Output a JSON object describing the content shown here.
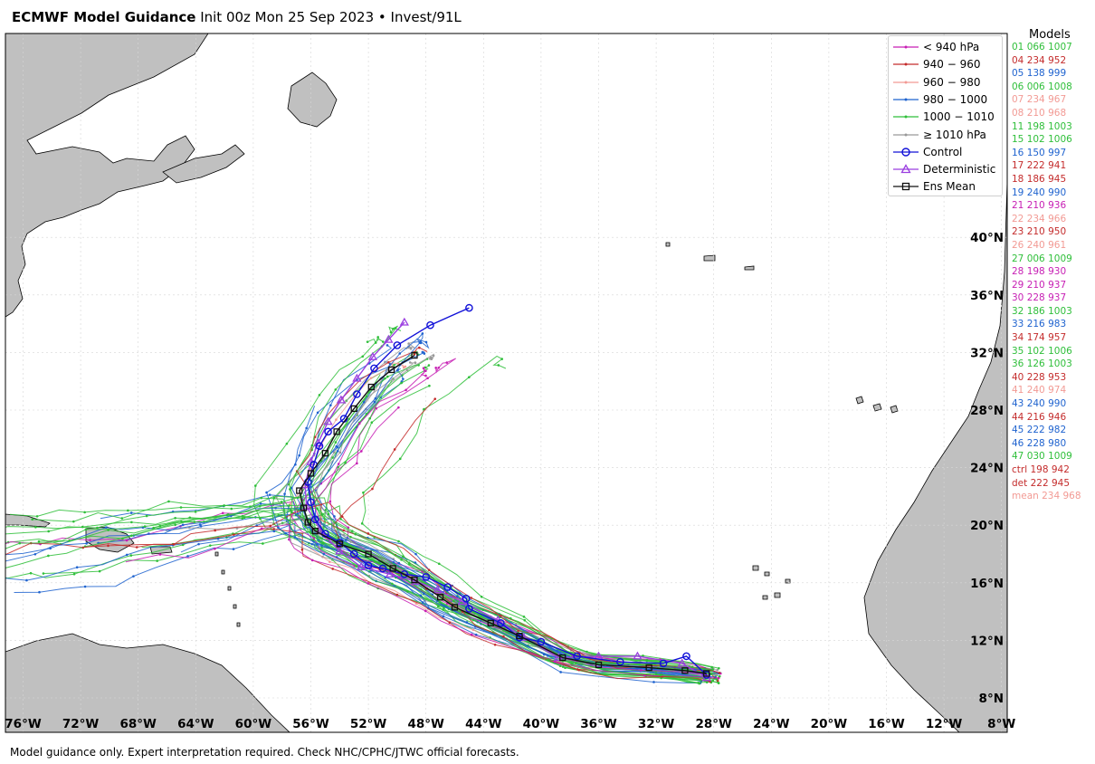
{
  "title": {
    "bold": "ECMWF Model Guidance",
    "rest": " Init 00z Mon 25 Sep 2023 • Invest/91L"
  },
  "axes": {
    "lon_labels": [
      "76°W",
      "72°W",
      "68°W",
      "64°W",
      "60°W",
      "56°W",
      "52°W",
      "48°W",
      "44°W",
      "40°W",
      "36°W",
      "32°W",
      "28°W",
      "24°W",
      "20°W",
      "16°W",
      "12°W",
      "8°W"
    ],
    "lon_values": [
      -76,
      -72,
      -68,
      -64,
      -60,
      -56,
      -52,
      -48,
      -44,
      -40,
      -36,
      -32,
      -28,
      -24,
      -20,
      -16,
      -12,
      -8
    ],
    "lat_labels": [
      "8°N",
      "12°N",
      "16°N",
      "20°N",
      "24°N",
      "28°N",
      "32°N",
      "36°N",
      "40°N"
    ],
    "lat_values": [
      8,
      12,
      16,
      20,
      24,
      28,
      32,
      36,
      40
    ],
    "extent": {
      "lon_min": -78,
      "lon_max": -8,
      "lat_min": 6.5,
      "lat_max": 55
    }
  },
  "legend": {
    "items": [
      {
        "label": "< 940 hPa",
        "color": "#c71fb4",
        "marker": "dot"
      },
      {
        "label": "940 − 960",
        "color": "#c42c2c",
        "marker": "dot"
      },
      {
        "label": "960 − 980",
        "color": "#f29a94",
        "marker": "dot"
      },
      {
        "label": "980 − 1000",
        "color": "#1f63cf",
        "marker": "dot"
      },
      {
        "label": "1000 − 1010",
        "color": "#2fbf3a",
        "marker": "dot"
      },
      {
        "label": "≥ 1010 hPa",
        "color": "#999999",
        "marker": "dot"
      },
      {
        "label": "Control",
        "color": "#1010d8",
        "marker": "circle"
      },
      {
        "label": "Deterministic",
        "color": "#9b3fe0",
        "marker": "triangle"
      },
      {
        "label": "Ens Mean",
        "color": "#111111",
        "marker": "square"
      }
    ]
  },
  "models": {
    "header": "Models",
    "items": [
      {
        "label": "01 066 1007",
        "color": "#2fbf3a"
      },
      {
        "label": "04 234 952",
        "color": "#c42c2c"
      },
      {
        "label": "05 138 999",
        "color": "#1f63cf"
      },
      {
        "label": "06 006 1008",
        "color": "#2fbf3a"
      },
      {
        "label": "07 234 967",
        "color": "#f29a94"
      },
      {
        "label": "08 210 968",
        "color": "#f29a94"
      },
      {
        "label": "11 198 1003",
        "color": "#2fbf3a"
      },
      {
        "label": "15 102 1006",
        "color": "#2fbf3a"
      },
      {
        "label": "16 150 997",
        "color": "#1f63cf"
      },
      {
        "label": "17 222 941",
        "color": "#c42c2c"
      },
      {
        "label": "18 186 945",
        "color": "#c42c2c"
      },
      {
        "label": "19 240 990",
        "color": "#1f63cf"
      },
      {
        "label": "21 210 936",
        "color": "#c71fb4"
      },
      {
        "label": "22 234 966",
        "color": "#f29a94"
      },
      {
        "label": "23 210 950",
        "color": "#c42c2c"
      },
      {
        "label": "26 240 961",
        "color": "#f29a94"
      },
      {
        "label": "27 006 1009",
        "color": "#2fbf3a"
      },
      {
        "label": "28 198 930",
        "color": "#c71fb4"
      },
      {
        "label": "29 210 937",
        "color": "#c71fb4"
      },
      {
        "label": "30 228 937",
        "color": "#c71fb4"
      },
      {
        "label": "32 186 1003",
        "color": "#2fbf3a"
      },
      {
        "label": "33 216 983",
        "color": "#1f63cf"
      },
      {
        "label": "34 174 957",
        "color": "#c42c2c"
      },
      {
        "label": "35 102 1006",
        "color": "#2fbf3a"
      },
      {
        "label": "36 126 1003",
        "color": "#2fbf3a"
      },
      {
        "label": "40 228 953",
        "color": "#c42c2c"
      },
      {
        "label": "41 240 974",
        "color": "#f29a94"
      },
      {
        "label": "43 240 990",
        "color": "#1f63cf"
      },
      {
        "label": "44 216 946",
        "color": "#c42c2c"
      },
      {
        "label": "45 222 982",
        "color": "#1f63cf"
      },
      {
        "label": "46 228 980",
        "color": "#1f63cf"
      },
      {
        "label": "47 030 1009",
        "color": "#2fbf3a"
      },
      {
        "label": "ctrl 198 942",
        "color": "#c42c2c"
      },
      {
        "label": "det 222 945",
        "color": "#c42c2c"
      },
      {
        "label": "mean 234 968",
        "color": "#f29a94"
      }
    ]
  },
  "tracks": {
    "control": [
      [
        -28.5,
        9.6
      ],
      [
        -29.9,
        10.9
      ],
      [
        -31.5,
        10.4
      ],
      [
        -34.5,
        10.5
      ],
      [
        -37.5,
        10.9
      ],
      [
        -40,
        11.9
      ],
      [
        -41.5,
        12.2
      ],
      [
        -42.8,
        13.2
      ],
      [
        -45,
        14.2
      ],
      [
        -45.2,
        14.9
      ],
      [
        -46.5,
        15.7
      ],
      [
        -48,
        16.4
      ],
      [
        -49.5,
        16.6
      ],
      [
        -51,
        17
      ],
      [
        -52,
        17.2
      ],
      [
        -53,
        18
      ],
      [
        -54,
        18.8
      ],
      [
        -55,
        19.4
      ],
      [
        -55.7,
        20.4
      ],
      [
        -56,
        21.6
      ],
      [
        -56.2,
        23
      ],
      [
        -55.8,
        24.2
      ],
      [
        -55.4,
        25.5
      ],
      [
        -54.8,
        26.5
      ],
      [
        -53.7,
        27.4
      ],
      [
        -52.8,
        29.1
      ],
      [
        -51.6,
        30.9
      ],
      [
        -50,
        32.5
      ],
      [
        -47.7,
        33.9
      ],
      [
        -45,
        35.1
      ]
    ],
    "deterministic": [
      [
        -28.5,
        9.4
      ],
      [
        -30.2,
        10.4
      ],
      [
        -33.3,
        10.9
      ],
      [
        -36,
        10.9
      ],
      [
        -38.8,
        10.8
      ],
      [
        -41.2,
        12.2
      ],
      [
        -43,
        13.4
      ],
      [
        -45.5,
        14.7
      ],
      [
        -47.2,
        15.5
      ],
      [
        -48.7,
        16.1
      ],
      [
        -50.5,
        16.6
      ],
      [
        -52.5,
        17.1
      ],
      [
        -54,
        18.2
      ],
      [
        -55.3,
        19.6
      ],
      [
        -56.3,
        21.3
      ],
      [
        -56.4,
        22.8
      ],
      [
        -56,
        24.4
      ],
      [
        -55.5,
        25.7
      ],
      [
        -54.8,
        27.2
      ],
      [
        -53.9,
        28.7
      ],
      [
        -52.8,
        30.2
      ],
      [
        -51.7,
        31.7
      ],
      [
        -50.6,
        32.9
      ],
      [
        -49.5,
        34.1
      ]
    ],
    "ens_mean": [
      [
        -28.5,
        9.7
      ],
      [
        -30,
        9.9
      ],
      [
        -32.5,
        10.1
      ],
      [
        -36,
        10.3
      ],
      [
        -38.5,
        10.8
      ],
      [
        -41.5,
        12.3
      ],
      [
        -43.5,
        13.2
      ],
      [
        -46,
        14.3
      ],
      [
        -47,
        15
      ],
      [
        -48.8,
        16.2
      ],
      [
        -50.3,
        17
      ],
      [
        -52,
        18
      ],
      [
        -54,
        18.7
      ],
      [
        -55.7,
        19.6
      ],
      [
        -56.2,
        20.2
      ],
      [
        -56.5,
        21.2
      ],
      [
        -56.8,
        22.4
      ],
      [
        -56,
        23.6
      ],
      [
        -55,
        25
      ],
      [
        -54.2,
        26.5
      ],
      [
        -53,
        28.1
      ],
      [
        -51.8,
        29.6
      ],
      [
        -50.4,
        30.8
      ],
      [
        -48.8,
        31.8
      ]
    ]
  },
  "footer": "Model guidance only. Expert interpretation required. Check NHC/CPHC/JTWC official forecasts."
}
